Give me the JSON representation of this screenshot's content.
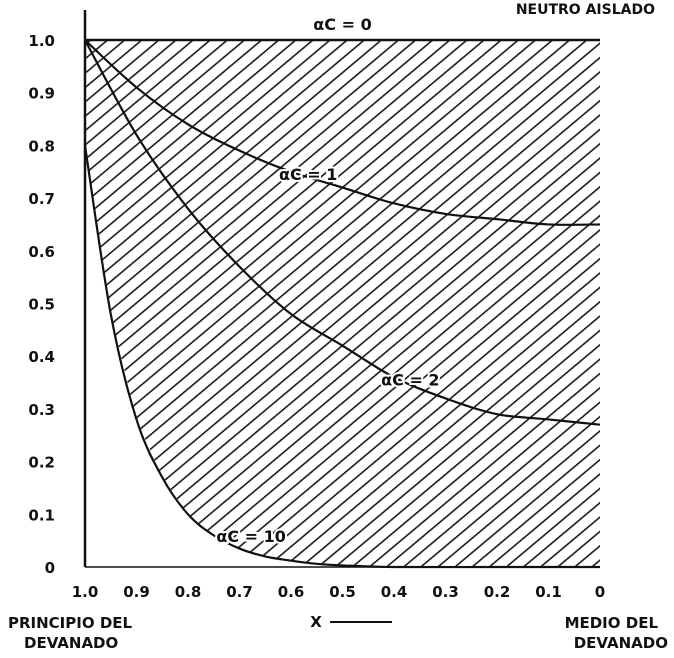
{
  "chart_data": {
    "type": "line",
    "title": "NEUTRO AISLADO",
    "xlabel": "X",
    "x_reversed": true,
    "xlim": [
      1.0,
      0
    ],
    "ylim": [
      0,
      1.0
    ],
    "x_ticks": [
      "1.0",
      "0.9",
      "0.8",
      "0.7",
      "0.6",
      "0.5",
      "0.4",
      "0.3",
      "0.2",
      "0.1",
      "0"
    ],
    "y_ticks": [
      "0",
      "0.1",
      "0.2",
      "0.3",
      "0.4",
      "0.5",
      "0.6",
      "0.7",
      "0.8",
      "0.9",
      "1.0"
    ],
    "x_left_caption": [
      "PRINCIPIO DEL",
      "DEVANADO"
    ],
    "x_right_caption": [
      "MEDIO DEL",
      "DEVANADO"
    ],
    "hatched_region": true,
    "series": [
      {
        "name": "αC = 0",
        "x": [
          1.0,
          0.0
        ],
        "y": [
          1.0,
          1.0
        ]
      },
      {
        "name": "αC = 1",
        "x": [
          1.0,
          0.9,
          0.8,
          0.7,
          0.6,
          0.5,
          0.4,
          0.3,
          0.2,
          0.1,
          0.0
        ],
        "y": [
          1.0,
          0.91,
          0.84,
          0.79,
          0.75,
          0.72,
          0.69,
          0.67,
          0.66,
          0.65,
          0.65
        ]
      },
      {
        "name": "αC = 2",
        "x": [
          1.0,
          0.9,
          0.8,
          0.7,
          0.6,
          0.5,
          0.4,
          0.3,
          0.2,
          0.1,
          0.0
        ],
        "y": [
          1.0,
          0.82,
          0.68,
          0.57,
          0.48,
          0.42,
          0.36,
          0.32,
          0.29,
          0.28,
          0.27
        ]
      },
      {
        "name": "αC = 10",
        "x": [
          1.0,
          0.95,
          0.9,
          0.85,
          0.8,
          0.75,
          0.7,
          0.65,
          0.6,
          0.55,
          0.5,
          0.4,
          0.2,
          0.0
        ],
        "y": [
          0.8,
          0.48,
          0.28,
          0.17,
          0.1,
          0.06,
          0.035,
          0.02,
          0.012,
          0.006,
          0.003,
          0.0,
          0.0,
          0.0
        ]
      }
    ],
    "colors": {
      "ink": "#111111",
      "hatch": "#1a1a1a",
      "background": "#ffffff"
    }
  }
}
